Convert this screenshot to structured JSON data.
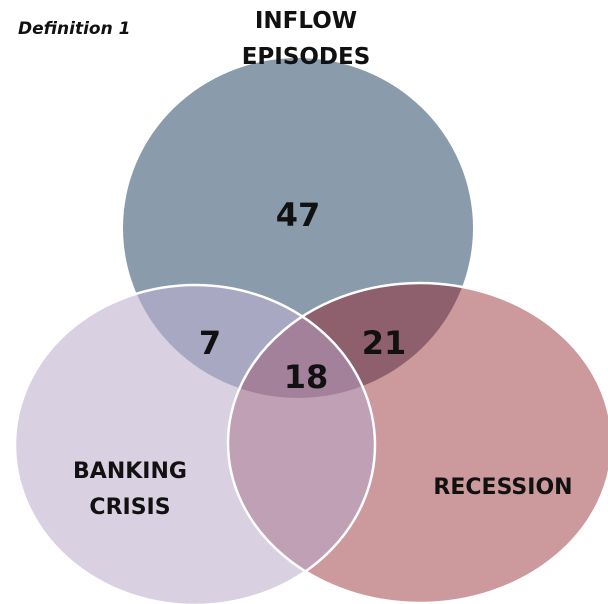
{
  "title": "Definition 1",
  "sets": [
    {
      "label_lines": [
        "INFLOW",
        "EPISODES"
      ]
    },
    {
      "label_lines": [
        "BANKING",
        "CRISIS"
      ]
    },
    {
      "label_lines": [
        "RECESSION"
      ]
    }
  ],
  "regions": [
    {
      "sets": "inflow only",
      "value": 47
    },
    {
      "sets": "inflow and banking",
      "value": 7
    },
    {
      "sets": "inflow and recession",
      "value": 21
    },
    {
      "sets": "all three",
      "value": 18
    }
  ]
}
